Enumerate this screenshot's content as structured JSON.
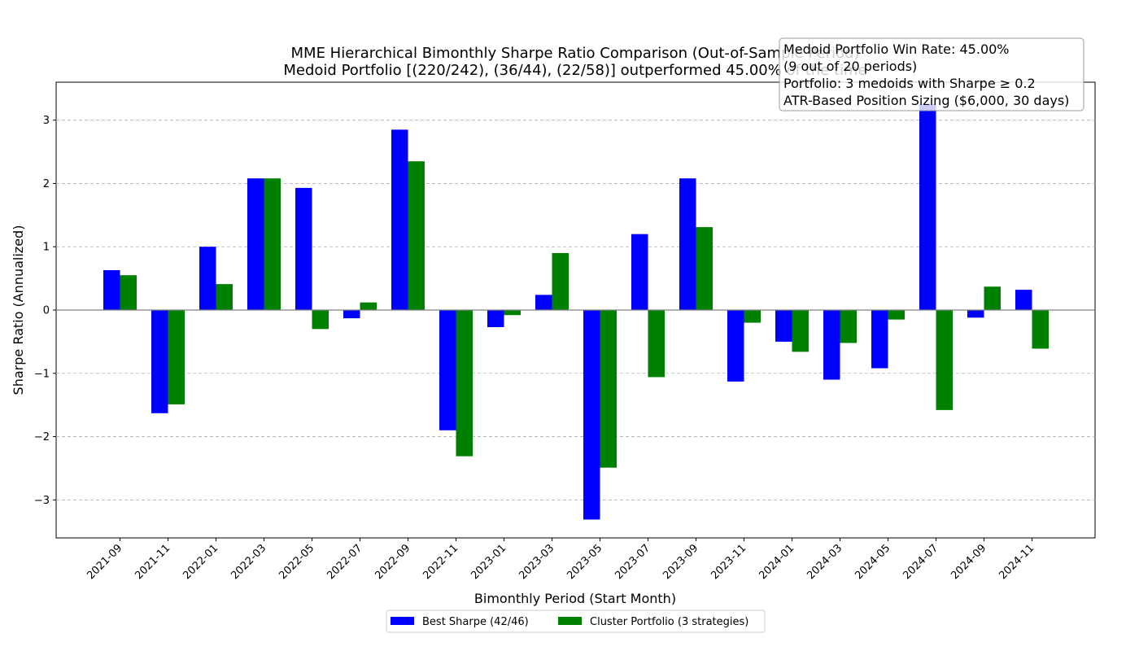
{
  "chart_data": {
    "type": "bar",
    "title_line1": "MME Hierarchical Bimonthly Sharpe Ratio Comparison (Out-of-Sample Period)",
    "title_line2": "Medoid Portfolio [(220/242), (36/44), (22/58)] outperformed 45.00% of the time",
    "xlabel": "Bimonthly Period (Start Month)",
    "ylabel": "Sharpe Ratio (Annualized)",
    "ylim": [
      -3.6,
      3.6
    ],
    "yticks": [
      -3,
      -2,
      -1,
      0,
      1,
      2,
      3
    ],
    "ytick_labels": [
      "−3",
      "−2",
      "−1",
      "0",
      "1",
      "2",
      "3"
    ],
    "grid": "horizontal dashed",
    "legend_position": "bottom-center",
    "categories": [
      "2021-09",
      "2021-11",
      "2022-01",
      "2022-03",
      "2022-05",
      "2022-07",
      "2022-09",
      "2022-11",
      "2023-01",
      "2023-03",
      "2023-05",
      "2023-07",
      "2023-09",
      "2023-11",
      "2024-01",
      "2024-03",
      "2024-05",
      "2024-07",
      "2024-09",
      "2024-11"
    ],
    "series": [
      {
        "name": "Best Sharpe (42/46)",
        "color": "#0000ff",
        "values": [
          0.63,
          -1.63,
          1.0,
          2.08,
          1.93,
          -0.13,
          2.85,
          -1.9,
          -0.27,
          0.24,
          -3.31,
          1.2,
          2.08,
          -1.13,
          -0.5,
          -1.1,
          -0.92,
          3.25,
          -0.12,
          0.32
        ]
      },
      {
        "name": "Cluster Portfolio (3 strategies)",
        "color": "#008000",
        "values": [
          0.55,
          -1.49,
          0.41,
          2.08,
          -0.3,
          0.12,
          2.35,
          -2.31,
          -0.08,
          0.9,
          -2.49,
          -1.06,
          1.31,
          -0.2,
          -0.66,
          -0.52,
          -0.15,
          -1.58,
          0.37,
          -0.61
        ]
      }
    ],
    "annotation": {
      "lines": [
        "Medoid Portfolio Win Rate: 45.00%",
        "(9 out of 20 periods)",
        "Portfolio: 3 medoids with Sharpe ≥ 0.2",
        "ATR-Based Position Sizing ($6,000, 30 days)"
      ]
    }
  }
}
